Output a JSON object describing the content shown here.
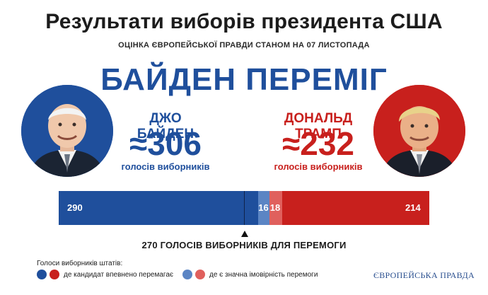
{
  "title": "Результати виборів президента США",
  "subtitle": "ОЦІНКА ЄВРОПЕЙСЬКОЇ ПРАВДИ СТАНОМ НА 07 ЛИСТОПАДА",
  "headline": "БАЙДЕН ПЕРЕМІГ",
  "biden": {
    "name": "ДЖО БАЙДЕН",
    "votes": "≈306",
    "votes_label": "голосів виборників",
    "color": "#1f4f9c"
  },
  "trump": {
    "name": "ДОНАЛЬД ТРАМП",
    "votes": "≈232",
    "votes_label": "голосів виборників",
    "color": "#c8201d"
  },
  "chart_data": {
    "type": "bar",
    "total": 538,
    "segments": [
      {
        "value": 290,
        "label": "290",
        "color": "#1f4f9c"
      },
      {
        "value": 16,
        "label": "16",
        "color": "#5b85c4"
      },
      {
        "value": 18,
        "label": "18",
        "color": "#e0605d"
      },
      {
        "value": 214,
        "label": "214",
        "color": "#c8201d"
      }
    ],
    "threshold": 270,
    "threshold_label": "270 ГОЛОСІВ ВИБОРНИКІВ ДЛЯ ПЕРЕМОГИ"
  },
  "legend": {
    "title": "Голоси виборників штатів:",
    "items": [
      {
        "label": "де кандидат впевнено перемагає",
        "colors": [
          "#1f4f9c",
          "#c8201d"
        ]
      },
      {
        "label": "де є значна імовірність перемоги",
        "colors": [
          "#5b85c4",
          "#e0605d"
        ]
      }
    ]
  },
  "brand": "ЄВРОПЕЙСЬКА ПРАВДА"
}
